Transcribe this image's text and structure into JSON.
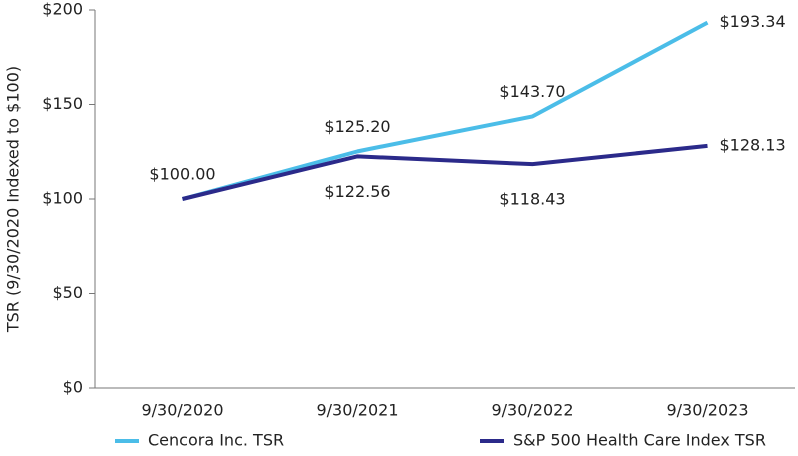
{
  "chart_data": {
    "type": "line",
    "y_label": "TSR (9/30/2020 Indexed to $100)",
    "categories": [
      "9/30/2020",
      "9/30/2021",
      "9/30/2022",
      "9/30/2023"
    ],
    "series": [
      {
        "name": "Cencora Inc. TSR",
        "color": "#4bbde8",
        "values": [
          100,
          125.2,
          143.7,
          193.34
        ],
        "value_labels": [
          "$100.00",
          "$125.20",
          "$143.70",
          "$193.34"
        ]
      },
      {
        "name": "S&P 500 Health Care Index TSR",
        "color": "#2b2a8a",
        "values": [
          100,
          122.56,
          118.43,
          128.13
        ],
        "value_labels": [
          null,
          "$122.56",
          "$118.43",
          "$128.13"
        ]
      }
    ],
    "ylim": [
      0,
      200
    ],
    "yticks": [
      {
        "value": 0,
        "label": "$0"
      },
      {
        "value": 50,
        "label": "$50"
      },
      {
        "value": 100,
        "label": "$100"
      },
      {
        "value": 150,
        "label": "$150"
      },
      {
        "value": 200,
        "label": "$200"
      }
    ],
    "grid": false
  }
}
